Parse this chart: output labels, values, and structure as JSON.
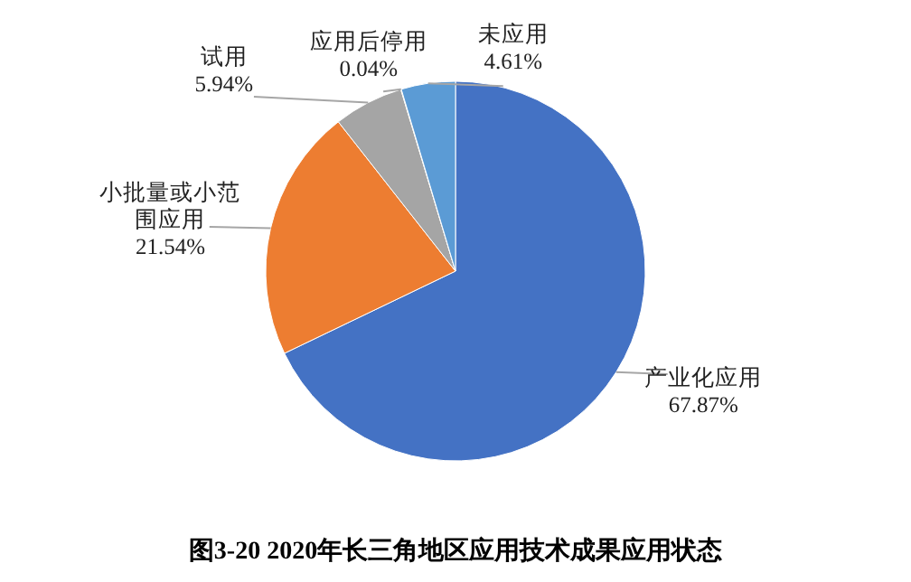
{
  "chart_data": {
    "type": "pie",
    "title": "图3-20  2020年长三角地区应用技术成果应用状态",
    "categories": [
      "产业化应用",
      "小批量或小范围应用",
      "试用",
      "应用后停用",
      "未应用"
    ],
    "values": [
      67.87,
      21.54,
      5.94,
      0.04,
      4.61
    ],
    "value_labels": [
      "67.87%",
      "21.54%",
      "5.94%",
      "0.04%",
      "4.61%"
    ],
    "colors": [
      "#4472c4",
      "#ed7d31",
      "#a5a5a5",
      "#ffc000",
      "#5b9bd5"
    ]
  }
}
